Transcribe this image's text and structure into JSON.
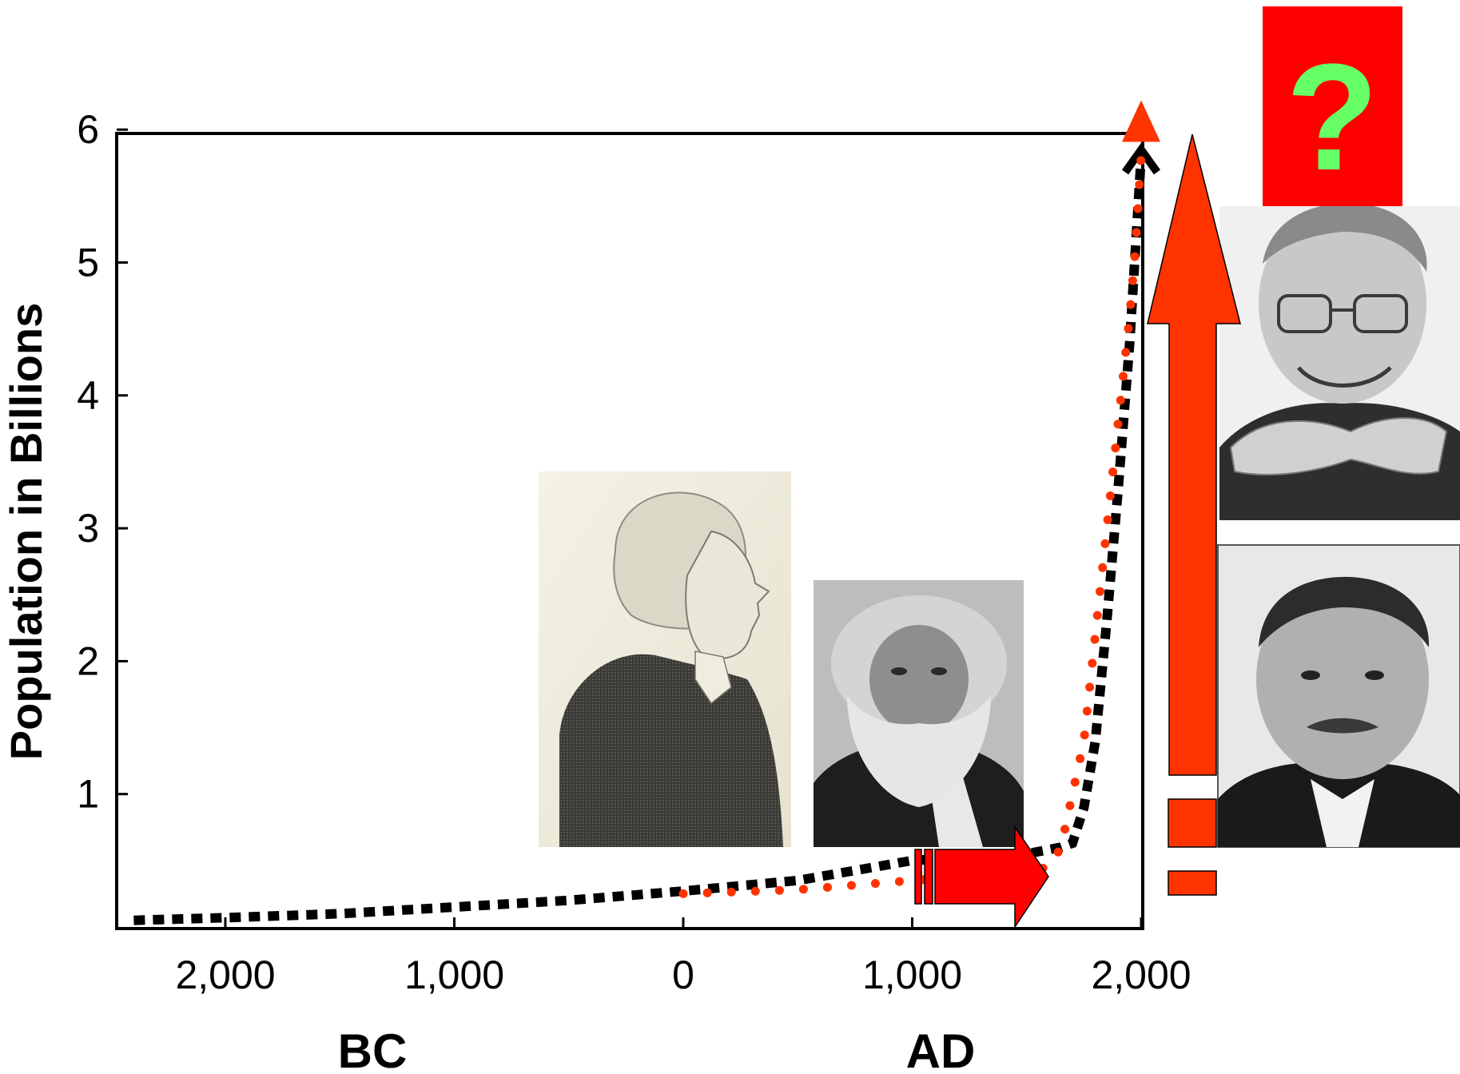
{
  "chart_data": {
    "type": "line",
    "title": "",
    "ylabel": "Population in Billions",
    "xlabel": "",
    "ylim": [
      0,
      6
    ],
    "xlim": [
      -2500,
      2000
    ],
    "y_ticks": [
      "1",
      "2",
      "3",
      "4",
      "5",
      "6"
    ],
    "x_ticks": [
      {
        "value": -2000,
        "label": "2,000"
      },
      {
        "value": -1000,
        "label": "1,000"
      },
      {
        "value": 0,
        "label": "0"
      },
      {
        "value": 1000,
        "label": "1,000"
      },
      {
        "value": 2000,
        "label": "2,000"
      }
    ],
    "era_labels": {
      "bc": "BC",
      "ad": "AD"
    },
    "grid": false,
    "series": [
      {
        "style": "black-dashed",
        "color": "#000000",
        "x": [
          -2400,
          -2000,
          -1500,
          -1000,
          -500,
          0,
          500,
          1000,
          1500,
          1650,
          1700,
          1750,
          1800,
          1850,
          1900,
          1950,
          2000
        ],
        "y": [
          0.05,
          0.07,
          0.1,
          0.15,
          0.2,
          0.27,
          0.35,
          0.5,
          0.55,
          0.6,
          0.63,
          0.9,
          1.4,
          2.3,
          3.3,
          4.4,
          5.8
        ]
      },
      {
        "style": "red-dotted",
        "color": "#ff3300",
        "x": [
          0,
          500,
          1000,
          1400,
          1600,
          1650,
          1750,
          1800,
          1850,
          1900,
          1950,
          1975,
          2000
        ],
        "y": [
          0.25,
          0.28,
          0.35,
          0.4,
          0.45,
          0.6,
          1.4,
          2.2,
          3.0,
          3.8,
          4.6,
          5.1,
          5.8
        ]
      }
    ],
    "annotations": {
      "question_box_text": "?",
      "question_box_color": "#ff0000",
      "question_mark_color": "#66ff66",
      "arrow_color": "#ff3300"
    }
  },
  "portraits": [
    {
      "name": "portrait-engraving-profile",
      "style": "engraving"
    },
    {
      "name": "portrait-bearded-man",
      "style": "photo"
    },
    {
      "name": "portrait-smiling-glasses",
      "style": "photo"
    },
    {
      "name": "portrait-mustache-man",
      "style": "photo"
    }
  ]
}
